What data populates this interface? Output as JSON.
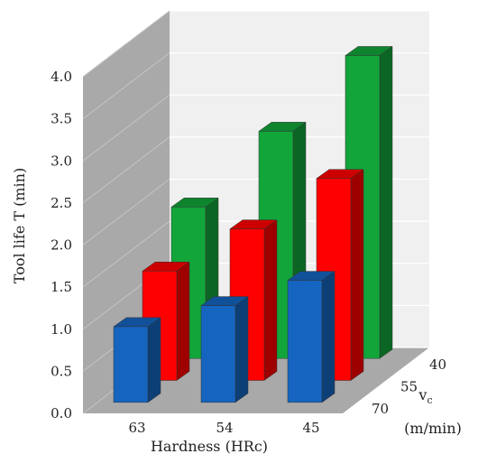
{
  "chart_data": {
    "type": "bar",
    "categories": [
      "63",
      "54",
      "45"
    ],
    "depth_categories": [
      "70",
      "55",
      "40"
    ],
    "series": [
      {
        "label": "70",
        "color": "#1565C0",
        "values": [
          0.9,
          1.15,
          1.45
        ]
      },
      {
        "label": "55",
        "color": "#FF0000",
        "values": [
          1.3,
          1.8,
          2.4
        ]
      },
      {
        "label": "40",
        "color": "#12A53A",
        "values": [
          1.8,
          2.7,
          3.6
        ]
      }
    ],
    "ylabel": "Tool life T (min)",
    "xlabel": "Hardness (HRc)",
    "zlabel_main": "v",
    "zlabel_sub": "c",
    "zlabel_unit": "(m/min)",
    "ylim": [
      0,
      4
    ],
    "yticks": [
      "0.0",
      "0.5",
      "1.0",
      "1.5",
      "2.0",
      "2.5",
      "3.0",
      "3.5",
      "4.0"
    ],
    "grid": true
  }
}
